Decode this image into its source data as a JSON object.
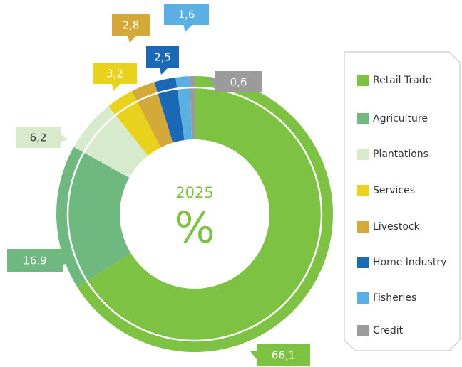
{
  "chart_data": {
    "type": "donut",
    "center_title": "2025",
    "center_unit": "%",
    "categories": [
      "Retail Trade",
      "Agriculture",
      "Plantations",
      "Services",
      "Livestock",
      "Home Industry",
      "Fisheries",
      "Credit"
    ],
    "values": [
      66.1,
      16.9,
      6.2,
      3.2,
      2.8,
      2.5,
      1.6,
      0.6
    ],
    "value_labels": [
      "66,1",
      "16,9",
      "6,2",
      "3,2",
      "2,8",
      "2,5",
      "1,6",
      "0,6"
    ],
    "colors": [
      "#7dc243",
      "#6fb87f",
      "#d7eacb",
      "#e9d21c",
      "#d4a93a",
      "#1b68b5",
      "#5ab0e2",
      "#9b9b9b"
    ],
    "legend": "right"
  }
}
